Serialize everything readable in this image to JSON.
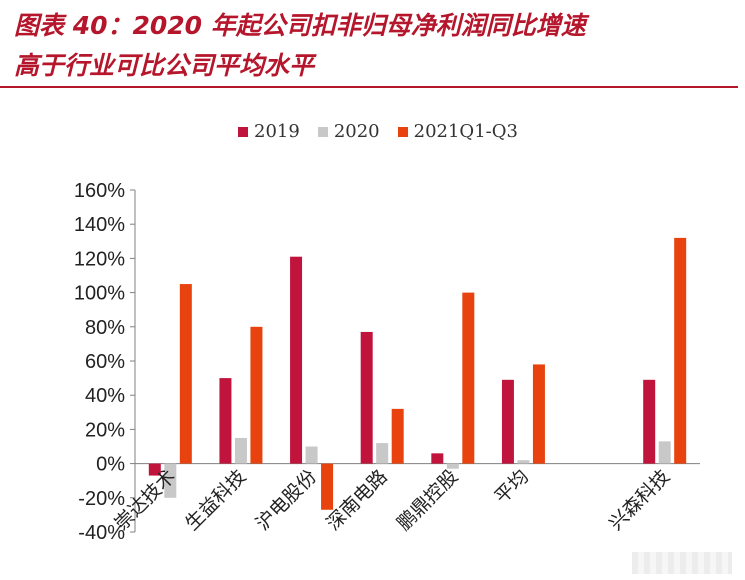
{
  "title": {
    "line1": "图表 40：2020 年起公司扣非归母净利润同比增速",
    "line2": "高于行业可比公司平均水平"
  },
  "chart_data": {
    "type": "bar",
    "categories": [
      "崇达技术",
      "生益科技",
      "沪电股份",
      "深南电路",
      "鹏鼎控股",
      "平均",
      "",
      "兴森科技"
    ],
    "series": [
      {
        "name": "2019",
        "color": "#c0143c",
        "values": [
          -7,
          50,
          121,
          77,
          6,
          49,
          null,
          49
        ]
      },
      {
        "name": "2020",
        "color": "#c8c8c8",
        "values": [
          -20,
          15,
          10,
          12,
          -3,
          2,
          null,
          13
        ]
      },
      {
        "name": "2021Q1-Q3",
        "color": "#e8430e",
        "values": [
          105,
          80,
          -27,
          32,
          100,
          58,
          null,
          132
        ]
      }
    ],
    "ylim": [
      -40,
      160
    ],
    "yticks": [
      "-40%",
      "-20%",
      "0%",
      "20%",
      "40%",
      "60%",
      "80%",
      "100%",
      "120%",
      "140%",
      "160%"
    ],
    "xlabel": "",
    "ylabel": "",
    "legend_position": "top",
    "grid": false
  }
}
